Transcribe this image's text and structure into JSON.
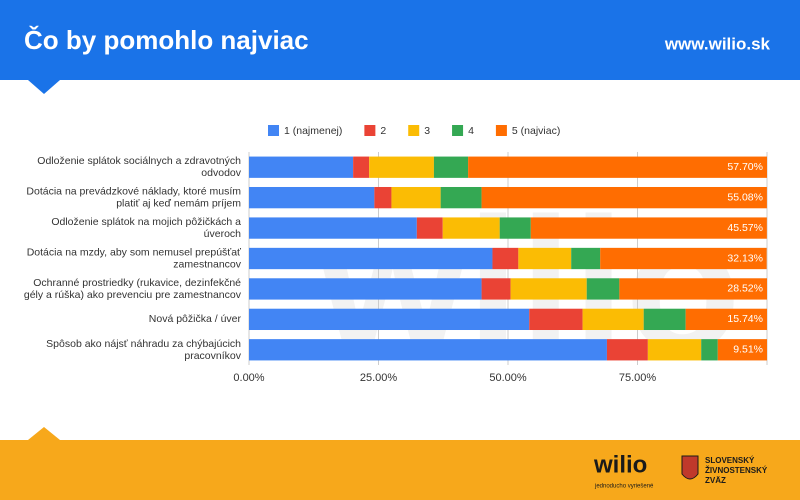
{
  "header": {
    "title": "Čo by pomohlo najviac",
    "url": "www.wilio.sk"
  },
  "watermark": "wilio",
  "footer": {
    "logo": "wilio",
    "slogan": "jednoducho vyriešené",
    "partner": [
      "SLOVENSKÝ",
      "ŽIVNOSTENSKÝ",
      "ZVÄZ"
    ]
  },
  "chart_data": {
    "type": "stacked_barh",
    "categories": [
      "Odloženie splátok sociálnych a zdravotných\nodvodov",
      "Dotácia na prevádzkové náklady, ktoré musím\nplatiť aj keď nemám príjem",
      "Odloženie splátok na mojich pôžičkách a\núveroch",
      "Dotácia na mzdy, aby som nemusel prepúšťať\nzamestnancov",
      "Ochranné prostriedky (rukavice, dezinfekčné\ngély a rúška) ako prevenciu pre zamestnancov",
      "Nová pôžička / úver",
      "Spôsob ako nájsť náhradu za chýbajúcich\npracovníkov"
    ],
    "series": [
      {
        "name": "1 (najmenej)",
        "color": "#4285f4",
        "values": [
          20.1,
          24.2,
          32.4,
          47.0,
          44.9,
          54.1,
          69.1
        ]
      },
      {
        "name": "2",
        "color": "#ea4335",
        "values": [
          3.1,
          3.3,
          5.0,
          5.0,
          5.6,
          10.3,
          7.9
        ]
      },
      {
        "name": "3",
        "color": "#fbbc04",
        "values": [
          12.5,
          9.5,
          11.0,
          10.2,
          14.7,
          11.8,
          10.3
        ]
      },
      {
        "name": "4",
        "color": "#34a853",
        "values": [
          6.6,
          7.9,
          6.0,
          5.6,
          6.3,
          8.1,
          3.2
        ]
      },
      {
        "name": "5 (najviac)",
        "color": "#ff6d01",
        "values": [
          57.7,
          55.08,
          45.57,
          32.13,
          28.52,
          15.74,
          9.51
        ],
        "value_labels": [
          "57.70%",
          "55.08%",
          "45.57%",
          "32.13%",
          "28.52%",
          "15.74%",
          "9.51%"
        ]
      }
    ],
    "xlim": [
      0,
      100
    ],
    "xticks": [
      {
        "value": 0,
        "label": "0.00%"
      },
      {
        "value": 25,
        "label": "25.00%"
      },
      {
        "value": 50,
        "label": "50.00%"
      },
      {
        "value": 75,
        "label": "75.00%"
      }
    ],
    "grid": true,
    "legend": "top"
  }
}
